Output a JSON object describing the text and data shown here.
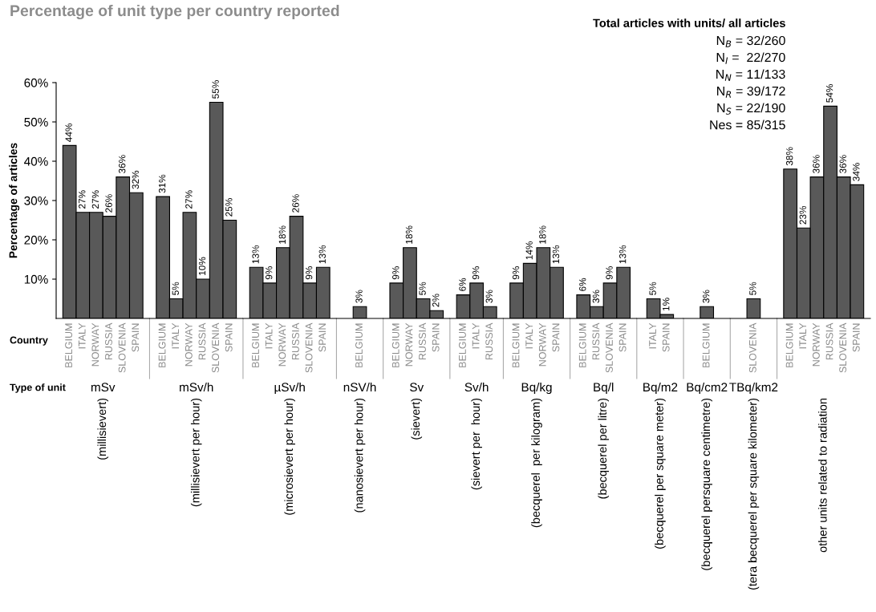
{
  "chart_data": [
    {
      "type": "bar",
      "title": "Percentage of unit type per country reported",
      "ylabel": "Percentage of articles",
      "xlabel": "mSv",
      "categories": [
        "BELGIUM",
        "ITALY",
        "NORWAY",
        "RUSSIA",
        "SLOVENIA",
        "SPAIN"
      ],
      "values": [
        44,
        27,
        27,
        26,
        36,
        32
      ],
      "value_labels": [
        "44%",
        "27%",
        "27%",
        "26%",
        "36%",
        "32%"
      ],
      "color": "#595959",
      "ylim": [
        0,
        60
      ],
      "yticks": [
        {
          "value": 10,
          "label": "10%"
        },
        {
          "value": 20,
          "label": "20%"
        },
        {
          "value": 30,
          "label": "30%"
        },
        {
          "value": 40,
          "label": "40%"
        },
        {
          "value": 50,
          "label": "50%"
        },
        {
          "value": 60,
          "label": "60%"
        }
      ],
      "annotations": [
        "(millisievert)",
        "Country",
        "Type of unit"
      ]
    },
    {
      "type": "bar",
      "xlabel": "mSv/h",
      "categories": [
        "BELGIUM",
        "ITALY",
        "NORWAY",
        "RUSSIA",
        "SLOVENIA",
        "SPAIN"
      ],
      "values": [
        31,
        5,
        27,
        10,
        55,
        25
      ],
      "value_labels": [
        "31%",
        "5%",
        "27%",
        "10%",
        "55%",
        "25%"
      ],
      "color": "#595959",
      "ylim": [
        0,
        60
      ],
      "tick_labels": "x",
      "annotations": [
        "(millisievert per hour)"
      ]
    },
    {
      "type": "bar",
      "xlabel": "µSv/h",
      "categories": [
        "BELGIUM",
        "ITALY",
        "NORWAY",
        "RUSSIA",
        "SLOVENIA",
        "SPAIN"
      ],
      "values": [
        13,
        9,
        18,
        26,
        9,
        13
      ],
      "value_labels": [
        "13%",
        "9%",
        "18%",
        "26%",
        "9%",
        "13%"
      ],
      "color": "#595959",
      "ylim": [
        0,
        60
      ],
      "tick_labels": "x",
      "annotations": [
        "(microsievert per hour)"
      ]
    },
    {
      "type": "bar",
      "xlabel": "nSV/h",
      "categories": [
        "BELGIUM"
      ],
      "values": [
        3
      ],
      "value_labels": [
        "3%"
      ],
      "color": "#595959",
      "ylim": [
        0,
        60
      ],
      "tick_labels": "x",
      "annotations": [
        "(nanosievert per hour)"
      ]
    },
    {
      "type": "bar",
      "xlabel": "Sv",
      "categories": [
        "BELGIUM",
        "NORWAY",
        "RUSSIA",
        "SPAIN"
      ],
      "values": [
        9,
        18,
        5,
        2
      ],
      "value_labels": [
        "9%",
        "18%",
        "5%",
        "2%"
      ],
      "color": "#595959",
      "ylim": [
        0,
        60
      ],
      "tick_labels": "x",
      "annotations": [
        "(sievert)"
      ]
    },
    {
      "type": "bar",
      "xlabel": "Sv/h",
      "categories": [
        "BELGIUM",
        "ITALY",
        "RUSSIA"
      ],
      "values": [
        6,
        9,
        3
      ],
      "value_labels": [
        "6%",
        "9%",
        "3%"
      ],
      "color": "#595959",
      "ylim": [
        0,
        60
      ],
      "tick_labels": "x",
      "annotations": [
        "(sievert per  hour)"
      ]
    },
    {
      "type": "bar",
      "xlabel": "Bq/kg",
      "categories": [
        "BELGIUM",
        "ITALY",
        "NORWAY",
        "SPAIN"
      ],
      "values": [
        9,
        14,
        18,
        13
      ],
      "value_labels": [
        "9%",
        "14%",
        "18%",
        "13%"
      ],
      "color": "#595959",
      "ylim": [
        0,
        60
      ],
      "tick_labels": "x",
      "annotations": [
        "(becquerel  per kilogram)"
      ]
    },
    {
      "type": "bar",
      "xlabel": "Bq/l",
      "categories": [
        "BELGIUM",
        "RUSSIA",
        "SLOVENIA",
        "SPAIN"
      ],
      "values": [
        6,
        3,
        9,
        13
      ],
      "value_labels": [
        "6%",
        "3%",
        "9%",
        "13%"
      ],
      "color": "#595959",
      "ylim": [
        0,
        60
      ],
      "tick_labels": "x",
      "annotations": [
        "(becquerel per litre)"
      ]
    },
    {
      "type": "bar",
      "xlabel": "Bq/m2",
      "categories": [
        "ITALY",
        "SPAIN"
      ],
      "values": [
        5,
        1
      ],
      "value_labels": [
        "5%",
        "1%"
      ],
      "color": "#595959",
      "ylim": [
        0,
        60
      ],
      "tick_labels": "x",
      "annotations": [
        "(becquerel per square meter)"
      ]
    },
    {
      "type": "bar",
      "xlabel": "Bq/cm2",
      "categories": [
        "BELGIUM"
      ],
      "values": [
        3
      ],
      "value_labels": [
        "3%"
      ],
      "color": "#595959",
      "ylim": [
        0,
        60
      ],
      "tick_labels": "x",
      "annotations": [
        "(becquerel persquare centimetre)"
      ]
    },
    {
      "type": "bar",
      "xlabel": "TBq/km2",
      "categories": [
        "SLOVENIA"
      ],
      "values": [
        5
      ],
      "value_labels": [
        "5%"
      ],
      "color": "#595959",
      "ylim": [
        0,
        60
      ],
      "tick_labels": "x",
      "annotations": [
        "(tera becquerel per square kilometer)"
      ]
    },
    {
      "type": "bar",
      "categories": [
        "BELGIUM",
        "ITALY",
        "NORWAY",
        "RUSSIA",
        "SLOVENIA",
        "SPAIN"
      ],
      "values": [
        38,
        23,
        36,
        54,
        36,
        34
      ],
      "value_labels": [
        "38%",
        "23%",
        "36%",
        "54%",
        "36%",
        "34%"
      ],
      "color": "#595959",
      "ylim": [
        0,
        60
      ],
      "tick_labels": "x",
      "annotations": [
        "other units related to radiation",
        "Total articles with units/ all articles",
        "N$_{B}$ = 32/260",
        "N$_{I}$ =  22/270",
        "N$_{N}$ = 11/133",
        "N$_{R}$ = 39/172",
        "N$_{S}$ = 22/190",
        "Nes = 85/315"
      ]
    }
  ]
}
